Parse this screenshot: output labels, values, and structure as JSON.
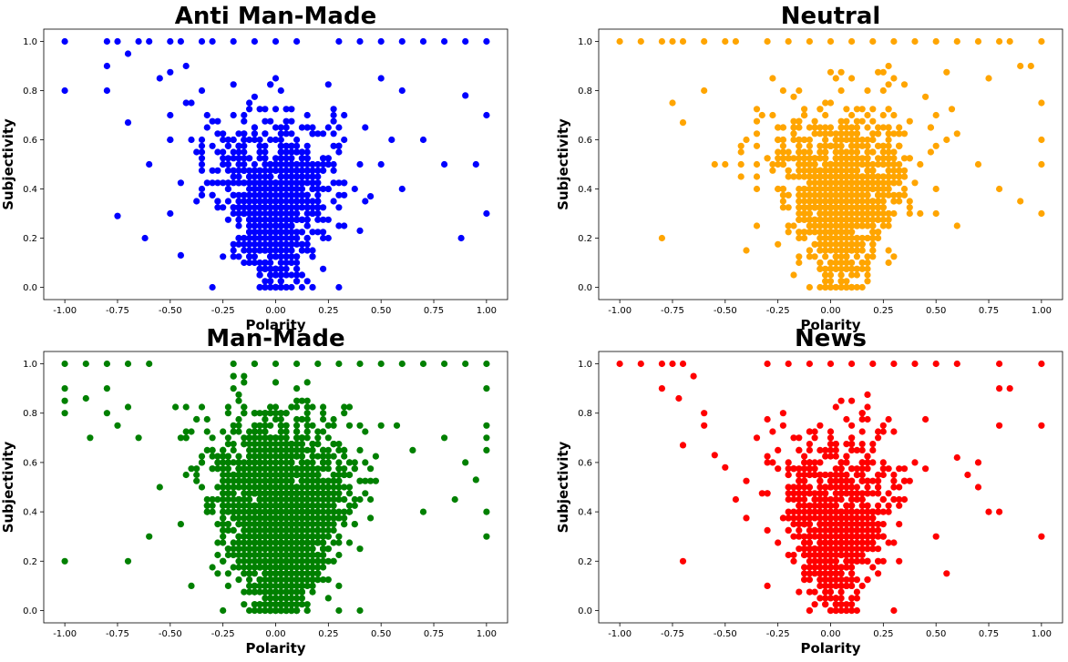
{
  "figure": {
    "layout": "2x2 grid"
  },
  "chart_data": [
    {
      "type": "scatter",
      "title": "Anti Man-Made",
      "xlabel": "Polarity",
      "ylabel": "Subjectivity",
      "color": "#0000ff",
      "xlim": [
        -1.1,
        1.1
      ],
      "ylim": [
        -0.05,
        1.05
      ],
      "xticks": [
        "-1.00",
        "-0.75",
        "-0.50",
        "-0.25",
        "0.00",
        "0.25",
        "0.50",
        "0.75",
        "1.00"
      ],
      "yticks": [
        "0.0",
        "0.2",
        "0.4",
        "0.6",
        "0.8",
        "1.0"
      ],
      "grid": false,
      "points": [
        [
          -1.0,
          1.0
        ],
        [
          -1.0,
          0.8
        ],
        [
          -0.8,
          1.0
        ],
        [
          -0.8,
          0.9
        ],
        [
          -0.8,
          0.8
        ],
        [
          -0.75,
          1.0
        ],
        [
          -0.7,
          0.95
        ],
        [
          -0.7,
          0.67
        ],
        [
          -0.75,
          0.29
        ],
        [
          -0.65,
          1.0
        ],
        [
          -0.6,
          1.0
        ],
        [
          -0.6,
          0.5
        ],
        [
          -0.62,
          0.2
        ],
        [
          -0.55,
          0.85
        ],
        [
          -0.5,
          1.0
        ],
        [
          -0.5,
          0.7
        ],
        [
          -0.5,
          0.6
        ],
        [
          -0.5,
          0.3
        ],
        [
          -0.45,
          0.13
        ],
        [
          -0.45,
          1.0
        ],
        [
          -0.4,
          0.6
        ],
        [
          -0.4,
          0.75
        ],
        [
          -0.35,
          1.0
        ],
        [
          -0.3,
          1.0
        ],
        [
          -0.3,
          0.0
        ],
        [
          -0.2,
          1.0
        ],
        [
          -0.1,
          1.0
        ],
        [
          0.0,
          1.0
        ],
        [
          0.1,
          1.0
        ],
        [
          0.3,
          1.0
        ],
        [
          0.4,
          1.0
        ],
        [
          0.5,
          1.0
        ],
        [
          0.6,
          1.0
        ],
        [
          0.7,
          1.0
        ],
        [
          0.8,
          1.0
        ],
        [
          0.9,
          1.0
        ],
        [
          1.0,
          1.0
        ],
        [
          0.3,
          0.0
        ],
        [
          1.0,
          0.7
        ],
        [
          1.0,
          0.3
        ],
        [
          0.95,
          0.5
        ],
        [
          0.88,
          0.2
        ],
        [
          0.9,
          0.78
        ],
        [
          0.8,
          0.5
        ],
        [
          0.7,
          0.6
        ],
        [
          0.6,
          0.4
        ],
        [
          0.6,
          0.8
        ],
        [
          0.5,
          0.85
        ],
        [
          0.5,
          0.5
        ],
        [
          0.55,
          0.6
        ],
        [
          0.45,
          0.37
        ],
        [
          0.4,
          0.23
        ]
      ],
      "cluster": {
        "x_center": 0.0,
        "x_spread": 0.3,
        "y_center": 0.35,
        "y_spread": 0.18,
        "count": 900
      }
    },
    {
      "type": "scatter",
      "title": "Neutral",
      "xlabel": "Polarity",
      "ylabel": "Subjectivity",
      "color": "#ffa500",
      "xlim": [
        -1.1,
        1.1
      ],
      "ylim": [
        -0.05,
        1.05
      ],
      "xticks": [
        "-1.00",
        "-0.75",
        "-0.50",
        "-0.25",
        "0.00",
        "0.25",
        "0.50",
        "0.75",
        "1.00"
      ],
      "yticks": [
        "0.0",
        "0.2",
        "0.4",
        "0.6",
        "0.8",
        "1.0"
      ],
      "grid": false,
      "points": [
        [
          -1.0,
          1.0
        ],
        [
          -0.9,
          1.0
        ],
        [
          -0.8,
          1.0
        ],
        [
          -0.8,
          0.2
        ],
        [
          -0.75,
          1.0
        ],
        [
          -0.7,
          1.0
        ],
        [
          -0.7,
          0.67
        ],
        [
          -0.75,
          0.75
        ],
        [
          -0.6,
          1.0
        ],
        [
          -0.6,
          0.8
        ],
        [
          -0.5,
          1.0
        ],
        [
          -0.5,
          0.5
        ],
        [
          -0.45,
          1.0
        ],
        [
          -0.4,
          0.15
        ],
        [
          -0.35,
          0.25
        ],
        [
          -0.3,
          1.0
        ],
        [
          -0.2,
          1.0
        ],
        [
          -0.1,
          1.0
        ],
        [
          0.0,
          1.0
        ],
        [
          0.1,
          1.0
        ],
        [
          0.2,
          1.0
        ],
        [
          0.3,
          1.0
        ],
        [
          0.4,
          1.0
        ],
        [
          0.5,
          1.0
        ],
        [
          0.6,
          1.0
        ],
        [
          0.7,
          1.0
        ],
        [
          0.8,
          1.0
        ],
        [
          0.85,
          1.0
        ],
        [
          0.9,
          0.9
        ],
        [
          0.95,
          0.9
        ],
        [
          1.0,
          1.0
        ],
        [
          1.0,
          0.75
        ],
        [
          1.0,
          0.6
        ],
        [
          1.0,
          0.5
        ],
        [
          1.0,
          0.3
        ],
        [
          0.9,
          0.35
        ],
        [
          0.8,
          0.4
        ],
        [
          0.7,
          0.5
        ],
        [
          0.75,
          0.85
        ],
        [
          0.6,
          0.25
        ],
        [
          0.5,
          0.4
        ],
        [
          0.5,
          0.3
        ]
      ],
      "cluster": {
        "x_center": 0.05,
        "x_spread": 0.3,
        "y_center": 0.38,
        "y_spread": 0.18,
        "count": 1200
      }
    },
    {
      "type": "scatter",
      "title": "Man-Made",
      "xlabel": "Polarity",
      "ylabel": "Subjectivity",
      "color": "#008000",
      "xlim": [
        -1.1,
        1.1
      ],
      "ylim": [
        -0.05,
        1.05
      ],
      "xticks": [
        "-1.00",
        "-0.75",
        "-0.50",
        "-0.25",
        "0.00",
        "0.25",
        "0.50",
        "0.75",
        "1.00"
      ],
      "yticks": [
        "0.0",
        "0.2",
        "0.4",
        "0.6",
        "0.8",
        "1.0"
      ],
      "grid": false,
      "points": [
        [
          -1.0,
          1.0
        ],
        [
          -1.0,
          0.9
        ],
        [
          -1.0,
          0.85
        ],
        [
          -1.0,
          0.8
        ],
        [
          -1.0,
          0.2
        ],
        [
          -0.9,
          1.0
        ],
        [
          -0.9,
          0.86
        ],
        [
          -0.88,
          0.7
        ],
        [
          -0.8,
          1.0
        ],
        [
          -0.8,
          0.9
        ],
        [
          -0.8,
          0.8
        ],
        [
          -0.75,
          0.75
        ],
        [
          -0.7,
          1.0
        ],
        [
          -0.7,
          0.2
        ],
        [
          -0.65,
          0.7
        ],
        [
          -0.6,
          1.0
        ],
        [
          -0.6,
          0.3
        ],
        [
          -0.55,
          0.5
        ],
        [
          -0.4,
          0.1
        ],
        [
          -0.25,
          0.0
        ],
        [
          -0.2,
          1.0
        ],
        [
          -0.1,
          1.0
        ],
        [
          0.0,
          1.0
        ],
        [
          0.1,
          1.0
        ],
        [
          0.2,
          1.0
        ],
        [
          0.3,
          1.0
        ],
        [
          0.4,
          1.0
        ],
        [
          0.5,
          1.0
        ],
        [
          0.6,
          1.0
        ],
        [
          0.7,
          1.0
        ],
        [
          0.8,
          1.0
        ],
        [
          0.9,
          1.0
        ],
        [
          1.0,
          1.0
        ],
        [
          1.0,
          0.9
        ],
        [
          1.0,
          0.75
        ],
        [
          1.0,
          0.7
        ],
        [
          1.0,
          0.65
        ],
        [
          1.0,
          0.4
        ],
        [
          1.0,
          0.3
        ],
        [
          0.9,
          0.6
        ],
        [
          0.95,
          0.53
        ],
        [
          0.85,
          0.45
        ],
        [
          0.8,
          0.7
        ],
        [
          0.7,
          0.4
        ],
        [
          0.4,
          0.0
        ],
        [
          0.3,
          0.0
        ],
        [
          0.25,
          0.05
        ]
      ],
      "cluster": {
        "x_center": 0.02,
        "x_spread": 0.3,
        "y_center": 0.38,
        "y_spread": 0.2,
        "count": 2400
      }
    },
    {
      "type": "scatter",
      "title": "News",
      "xlabel": "Polarity",
      "ylabel": "Subjectivity",
      "color": "#ff0000",
      "xlim": [
        -1.1,
        1.1
      ],
      "ylim": [
        -0.05,
        1.05
      ],
      "xticks": [
        "-1.00",
        "-0.75",
        "-0.50",
        "-0.25",
        "0.00",
        "0.25",
        "0.50",
        "0.75",
        "1.00"
      ],
      "yticks": [
        "0.0",
        "0.2",
        "0.4",
        "0.6",
        "0.8",
        "1.0"
      ],
      "grid": false,
      "points": [
        [
          -1.0,
          1.0
        ],
        [
          -0.9,
          1.0
        ],
        [
          -0.8,
          1.0
        ],
        [
          -0.8,
          0.9
        ],
        [
          -0.75,
          1.0
        ],
        [
          -0.7,
          1.0
        ],
        [
          -0.72,
          0.86
        ],
        [
          -0.7,
          0.67
        ],
        [
          -0.7,
          0.2
        ],
        [
          -0.65,
          0.95
        ],
        [
          -0.6,
          0.8
        ],
        [
          -0.6,
          0.75
        ],
        [
          -0.55,
          0.63
        ],
        [
          -0.5,
          0.58
        ],
        [
          -0.45,
          0.45
        ],
        [
          -0.3,
          0.1
        ],
        [
          -0.3,
          1.0
        ],
        [
          -0.2,
          1.0
        ],
        [
          -0.1,
          1.0
        ],
        [
          0.0,
          1.0
        ],
        [
          0.1,
          1.0
        ],
        [
          0.2,
          1.0
        ],
        [
          0.3,
          1.0
        ],
        [
          0.4,
          1.0
        ],
        [
          0.5,
          1.0
        ],
        [
          0.6,
          1.0
        ],
        [
          0.8,
          1.0
        ],
        [
          0.8,
          0.9
        ],
        [
          0.8,
          0.75
        ],
        [
          0.8,
          0.4
        ],
        [
          0.85,
          0.9
        ],
        [
          0.75,
          0.4
        ],
        [
          0.7,
          0.6
        ],
        [
          0.7,
          0.5
        ],
        [
          0.65,
          0.55
        ],
        [
          0.6,
          0.62
        ],
        [
          0.55,
          0.15
        ],
        [
          0.5,
          0.3
        ],
        [
          0.3,
          0.0
        ],
        [
          1.0,
          1.0
        ],
        [
          1.0,
          0.75
        ],
        [
          1.0,
          0.3
        ]
      ],
      "cluster": {
        "x_center": 0.02,
        "x_spread": 0.28,
        "y_center": 0.36,
        "y_spread": 0.18,
        "count": 800
      }
    }
  ]
}
